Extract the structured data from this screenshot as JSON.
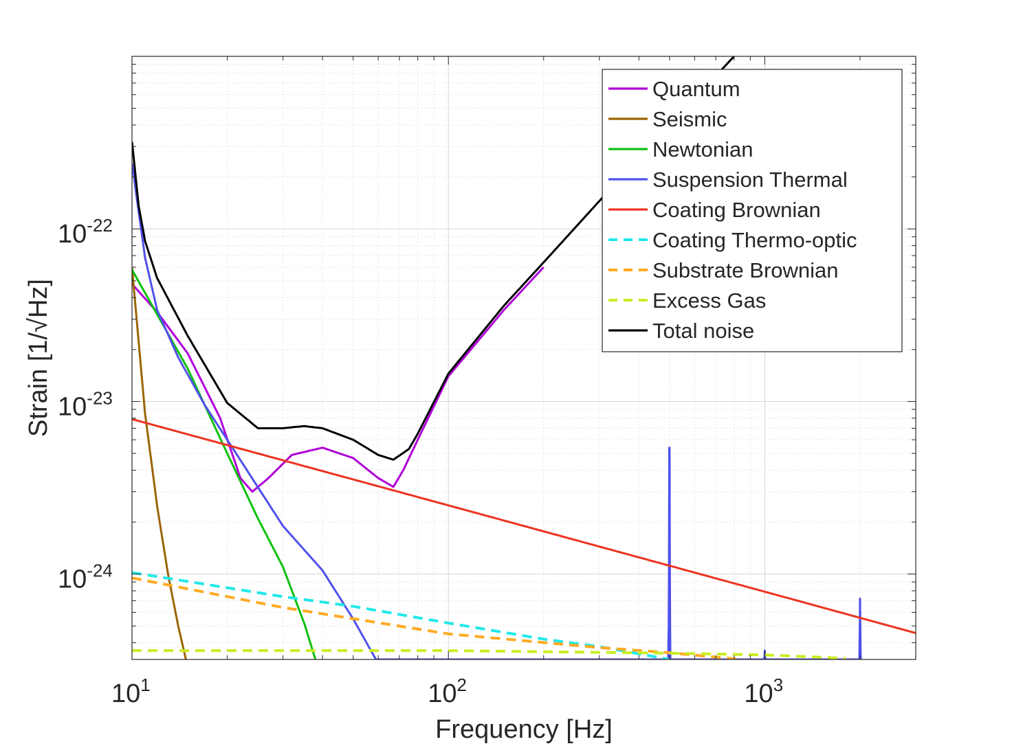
{
  "chart_data": {
    "type": "line",
    "title": "",
    "xlabel": "Frequency [Hz]",
    "ylabel": "Strain [1/√Hz]",
    "xscale": "log",
    "yscale": "log",
    "xlim": [
      10,
      3000
    ],
    "ylim": [
      3.2e-25,
      1e-21
    ],
    "grid": true,
    "legend_position": "top-right",
    "x_ticks": [
      {
        "base": "10",
        "exp": "1",
        "value": 10
      },
      {
        "base": "10",
        "exp": "2",
        "value": 100
      },
      {
        "base": "10",
        "exp": "3",
        "value": 1000
      }
    ],
    "y_ticks": [
      {
        "base": "10",
        "exp": "-22",
        "value": 1e-22
      },
      {
        "base": "10",
        "exp": "-23",
        "value": 1e-23
      },
      {
        "base": "10",
        "exp": "-24",
        "value": 1e-24
      }
    ],
    "series": [
      {
        "name": "Quantum",
        "color": "#b000d8",
        "style": "solid",
        "x": [
          10,
          12,
          15,
          19,
          22,
          24,
          27,
          32,
          40,
          50,
          60,
          67,
          72,
          80,
          100,
          150,
          200
        ],
        "y": [
          4.8e-23,
          3.3e-23,
          1.9e-23,
          8e-24,
          3.6e-24,
          3e-24,
          3.6e-24,
          4.9e-24,
          5.4e-24,
          4.7e-24,
          3.6e-24,
          3.2e-24,
          4e-24,
          6e-24,
          1.4e-23,
          3.4e-23,
          6e-23
        ]
      },
      {
        "name": "Seismic",
        "color": "#9a6400",
        "style": "solid",
        "x": [
          10,
          11,
          12,
          13,
          14,
          14.8
        ],
        "y": [
          6e-23,
          8.5e-24,
          2.5e-24,
          1e-24,
          5e-25,
          3.2e-25
        ]
      },
      {
        "name": "Newtonian",
        "color": "#10c010",
        "style": "solid",
        "x": [
          10,
          15,
          20,
          25,
          30,
          35,
          38
        ],
        "y": [
          5.8e-23,
          1.55e-23,
          5e-24,
          2.1e-24,
          1.1e-24,
          5.2e-25,
          3.2e-25
        ]
      },
      {
        "name": "Suspension Thermal",
        "color": "#5050ec",
        "style": "solid",
        "x": [
          10,
          10.5,
          11,
          12,
          14,
          17,
          20,
          30,
          40,
          50,
          59,
          495,
          497,
          498,
          499,
          500,
          501,
          502,
          503,
          505,
          995,
          998,
          1000,
          1002,
          1005,
          1990,
          1995,
          2000,
          2005,
          2010
        ],
        "y": [
          2.4e-22,
          1.25e-22,
          6.8e-23,
          3.4e-23,
          1.8e-23,
          9.5e-24,
          6e-24,
          1.9e-24,
          1.05e-24,
          5.5e-25,
          3.2e-25,
          3.2e-25,
          5e-25,
          1.2e-24,
          5.4e-24,
          5.4e-24,
          1.2e-24,
          5e-25,
          3.2e-25,
          3.2e-25,
          3.2e-25,
          3.3e-25,
          3.6e-25,
          3.3e-25,
          3.2e-25,
          3.2e-25,
          4.5e-25,
          7.2e-25,
          4.5e-25,
          3.2e-25
        ]
      },
      {
        "name": "Coating Brownian",
        "color": "#ee3322",
        "style": "solid",
        "x": [
          10,
          100,
          1000,
          3000
        ],
        "y": [
          7.9e-24,
          2.5e-24,
          7.9e-25,
          4.55e-25
        ]
      },
      {
        "name": "Coating Thermo-optic",
        "color": "#22e8e8",
        "style": "dashed",
        "x": [
          10,
          30,
          50,
          100,
          200,
          300,
          400,
          500
        ],
        "y": [
          1.02e-24,
          7.4e-25,
          6.5e-25,
          5.2e-25,
          4.2e-25,
          3.8e-25,
          3.45e-25,
          3.2e-25
        ]
      },
      {
        "name": "Substrate Brownian",
        "color": "#ffaa22",
        "style": "dashed",
        "x": [
          10,
          30,
          100,
          300,
          500,
          700,
          850
        ],
        "y": [
          9.5e-25,
          6.4e-25,
          4.5e-25,
          3.75e-25,
          3.5e-25,
          3.3e-25,
          3.2e-25
        ]
      },
      {
        "name": "Excess Gas",
        "color": "#c8ee22",
        "style": "dashed",
        "x": [
          10,
          100,
          500,
          1000,
          1800
        ],
        "y": [
          3.6e-25,
          3.6e-25,
          3.48e-25,
          3.4e-25,
          3.25e-25
        ]
      },
      {
        "name": "Total noise",
        "color": "#000000",
        "style": "solid",
        "x": [
          10,
          10.5,
          11,
          12,
          15,
          20,
          25,
          30,
          35,
          40,
          50,
          60,
          67,
          75,
          80,
          100,
          150,
          200,
          300,
          500,
          800
        ],
        "y": [
          3.2e-22,
          1.35e-22,
          8.5e-23,
          5.2e-23,
          2.4e-23,
          9.8e-24,
          7e-24,
          7e-24,
          7.2e-24,
          7e-24,
          6e-24,
          4.9e-24,
          4.6e-24,
          5.3e-24,
          6.5e-24,
          1.45e-23,
          3.6e-23,
          6.4e-23,
          1.45e-22,
          4e-22,
          1e-21
        ]
      }
    ]
  }
}
